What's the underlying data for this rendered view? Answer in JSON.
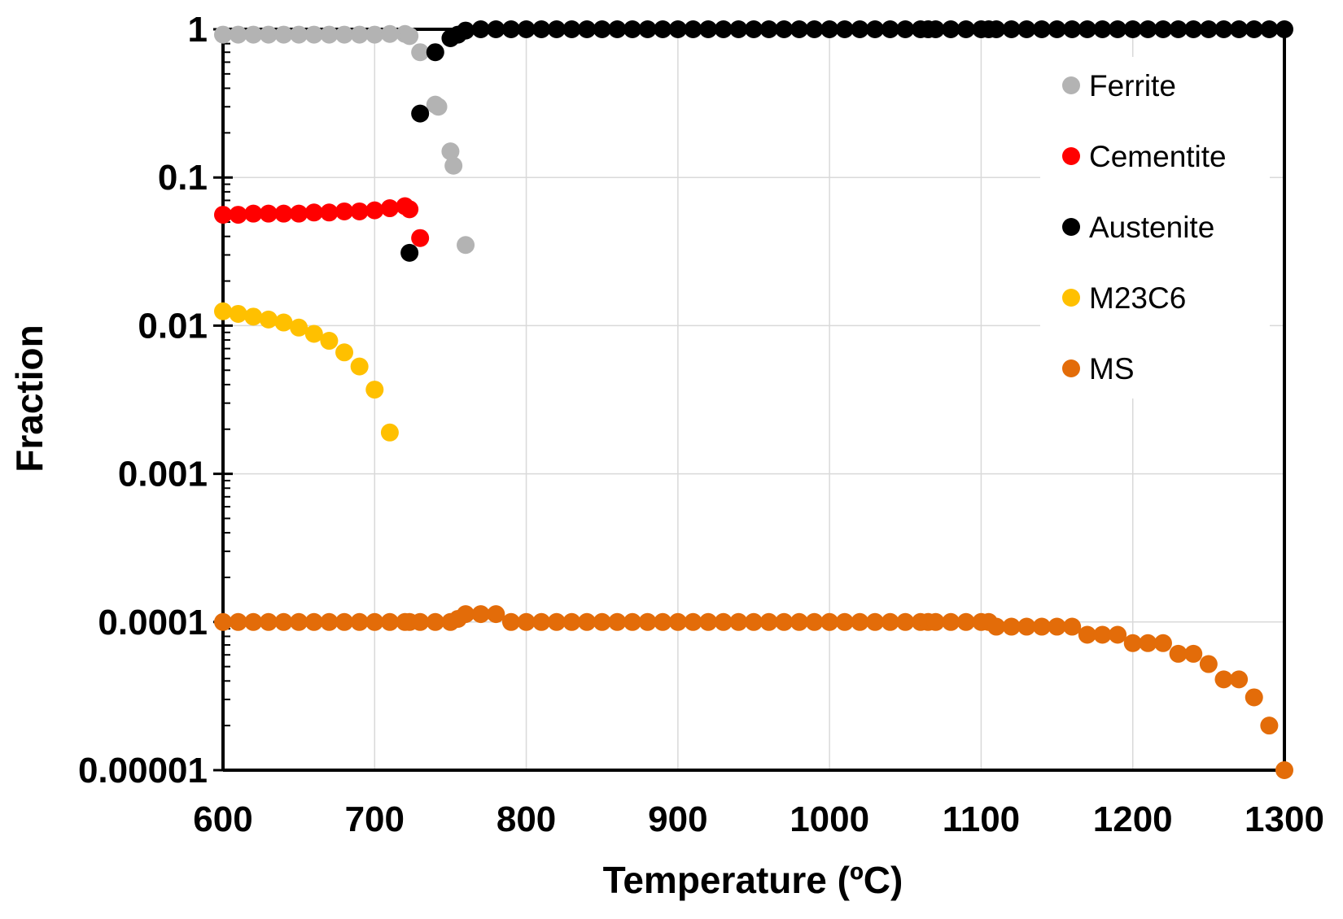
{
  "chart_data": {
    "type": "scatter",
    "title": "",
    "xlabel": "Temperature (ºC)",
    "ylabel": "Fraction",
    "xlim": [
      600,
      1300
    ],
    "ylim": [
      1e-05,
      1
    ],
    "yscale": "log",
    "grid": true,
    "legend_position": "top-right",
    "x_ticks": [
      600,
      700,
      800,
      900,
      1000,
      1100,
      1200,
      1300
    ],
    "x_tick_labels": [
      "600",
      "700",
      "800",
      "900",
      "1000",
      "1100",
      "1200",
      "1300"
    ],
    "y_ticks": [
      1,
      0.1,
      0.01,
      0.001,
      0.0001,
      1e-05
    ],
    "y_tick_labels": [
      "1",
      "0.1",
      "0.01",
      "0.001",
      "0.0001",
      "0.00001"
    ],
    "series": [
      {
        "name": "Ferrite",
        "color": "#b3b3b3",
        "x": [
          600,
          610,
          620,
          630,
          640,
          650,
          660,
          670,
          680,
          690,
          700,
          710,
          720,
          723,
          730,
          740,
          742,
          750,
          752,
          760
        ],
        "y": [
          0.92,
          0.92,
          0.92,
          0.92,
          0.92,
          0.92,
          0.92,
          0.92,
          0.92,
          0.92,
          0.92,
          0.93,
          0.93,
          0.9,
          0.7,
          0.31,
          0.3,
          0.15,
          0.12,
          0.035
        ]
      },
      {
        "name": "Cementite",
        "color": "#ff0000",
        "x": [
          600,
          610,
          620,
          630,
          640,
          650,
          660,
          670,
          680,
          690,
          700,
          710,
          720,
          723,
          730
        ],
        "y": [
          0.056,
          0.056,
          0.057,
          0.057,
          0.057,
          0.057,
          0.058,
          0.058,
          0.059,
          0.059,
          0.06,
          0.062,
          0.064,
          0.061,
          0.039
        ]
      },
      {
        "name": "Austenite",
        "color": "#000000",
        "x": [
          723,
          730,
          740,
          750,
          755,
          760,
          770,
          780,
          790,
          800,
          810,
          820,
          830,
          840,
          850,
          860,
          870,
          880,
          890,
          900,
          910,
          920,
          930,
          940,
          950,
          960,
          970,
          980,
          990,
          1000,
          1010,
          1020,
          1030,
          1040,
          1050,
          1060,
          1065,
          1070,
          1080,
          1090,
          1100,
          1105,
          1110,
          1120,
          1130,
          1140,
          1150,
          1160,
          1170,
          1180,
          1190,
          1200,
          1210,
          1220,
          1230,
          1240,
          1250,
          1260,
          1270,
          1280,
          1290,
          1300
        ],
        "y": [
          0.031,
          0.27,
          0.7,
          0.87,
          0.92,
          0.98,
          1,
          1,
          1,
          1,
          1,
          1,
          1,
          1,
          1,
          1,
          1,
          1,
          1,
          1,
          1,
          1,
          1,
          1,
          1,
          1,
          1,
          1,
          1,
          1,
          1,
          1,
          1,
          1,
          1,
          1,
          1,
          1,
          1,
          1,
          1,
          1,
          1,
          1,
          1,
          1,
          1,
          1,
          1,
          1,
          1,
          1,
          1,
          1,
          1,
          1,
          1,
          1,
          1,
          1,
          1,
          1
        ]
      },
      {
        "name": "M23C6",
        "color": "#ffc000",
        "x": [
          600,
          610,
          620,
          630,
          640,
          650,
          660,
          670,
          680,
          690,
          700,
          710
        ],
        "y": [
          0.0125,
          0.012,
          0.0115,
          0.011,
          0.0105,
          0.0097,
          0.0088,
          0.0079,
          0.0066,
          0.0053,
          0.0037,
          0.0019
        ]
      },
      {
        "name": "MS",
        "color": "#e36c09",
        "x": [
          600,
          610,
          620,
          630,
          640,
          650,
          660,
          670,
          680,
          690,
          700,
          710,
          720,
          723,
          730,
          740,
          750,
          755,
          760,
          770,
          780,
          790,
          800,
          810,
          820,
          830,
          840,
          850,
          860,
          870,
          880,
          890,
          900,
          910,
          920,
          930,
          940,
          950,
          960,
          970,
          980,
          990,
          1000,
          1010,
          1020,
          1030,
          1040,
          1050,
          1060,
          1065,
          1070,
          1080,
          1090,
          1100,
          1105,
          1110,
          1120,
          1130,
          1140,
          1150,
          1160,
          1170,
          1180,
          1190,
          1200,
          1210,
          1220,
          1230,
          1240,
          1250,
          1260,
          1270,
          1280,
          1290,
          1300
        ],
        "y": [
          0.0001,
          0.0001,
          0.0001,
          0.0001,
          0.0001,
          0.0001,
          0.0001,
          0.0001,
          0.0001,
          0.0001,
          0.0001,
          0.0001,
          0.0001,
          0.0001,
          0.0001,
          0.0001,
          0.0001,
          0.000105,
          0.000113,
          0.000113,
          0.000113,
          0.0001,
          0.0001,
          0.0001,
          0.0001,
          0.0001,
          0.0001,
          0.0001,
          0.0001,
          0.0001,
          0.0001,
          0.0001,
          0.0001,
          0.0001,
          0.0001,
          0.0001,
          0.0001,
          0.0001,
          0.0001,
          0.0001,
          0.0001,
          0.0001,
          0.0001,
          0.0001,
          0.0001,
          0.0001,
          0.0001,
          0.0001,
          0.0001,
          0.0001,
          0.0001,
          0.0001,
          0.0001,
          0.0001,
          0.0001,
          9.3e-05,
          9.3e-05,
          9.3e-05,
          9.3e-05,
          9.3e-05,
          9.3e-05,
          8.2e-05,
          8.2e-05,
          8.2e-05,
          7.2e-05,
          7.2e-05,
          7.2e-05,
          6.1e-05,
          6.1e-05,
          5.2e-05,
          4.1e-05,
          4.1e-05,
          3.1e-05,
          2e-05,
          1e-05
        ]
      }
    ]
  }
}
